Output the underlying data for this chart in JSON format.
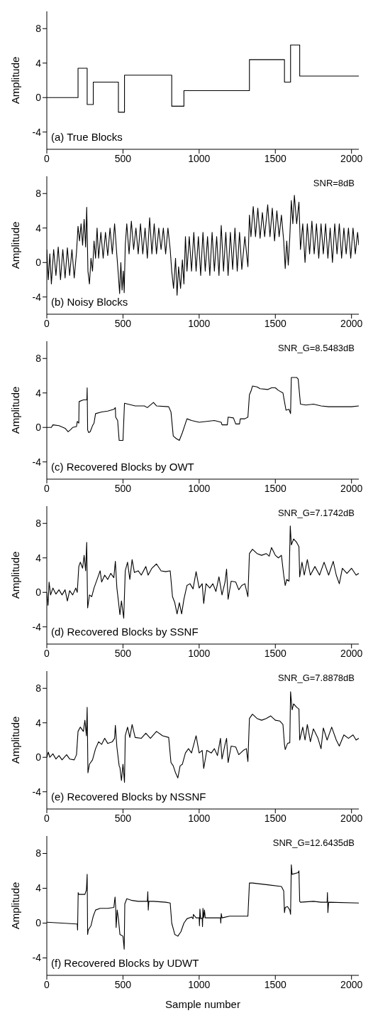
{
  "chart_data": [
    {
      "type": "step",
      "title": "(a) True Blocks",
      "ylabel": "Amplitude",
      "xlim": [
        0,
        2048
      ],
      "ylim": [
        -6,
        10
      ],
      "xticks": [
        0,
        500,
        1000,
        1500,
        2000
      ],
      "yticks": [
        -4,
        0,
        4,
        8
      ],
      "grid": false,
      "legend": false,
      "marker": "none",
      "line_style": "solid",
      "series": [
        {
          "color": "#000000",
          "x": [
            0,
            205,
            265,
            305,
            470,
            510,
            820,
            900,
            1330,
            1560,
            1600,
            1660,
            2048
          ],
          "values": [
            0,
            3.4,
            -0.8,
            1.8,
            -1.7,
            2.6,
            -1,
            0.8,
            4.4,
            1.8,
            6.1,
            2.5,
            2.5
          ]
        }
      ]
    },
    {
      "type": "line",
      "title": "(b) Noisy Blocks",
      "ylabel": "Amplitude",
      "annotations": [
        "SNR=8dB"
      ],
      "xlim": [
        0,
        2048
      ],
      "ylim": [
        -6,
        10
      ],
      "xticks": [
        0,
        500,
        1000,
        1500,
        2000
      ],
      "yticks": [
        -4,
        0,
        4,
        8
      ],
      "grid": false,
      "legend": false,
      "marker": "none",
      "line_style": "solid",
      "series": [
        {
          "color": "#000000",
          "x": [
            0,
            10,
            20,
            30,
            45,
            60,
            75,
            90,
            105,
            120,
            135,
            150,
            165,
            180,
            195,
            205,
            215,
            225,
            235,
            245,
            255,
            262,
            270,
            280,
            290,
            300,
            310,
            320,
            330,
            340,
            355,
            370,
            385,
            400,
            415,
            430,
            445,
            460,
            470,
            478,
            486,
            494,
            502,
            508,
            515,
            525,
            540,
            555,
            570,
            585,
            600,
            615,
            630,
            645,
            660,
            675,
            690,
            705,
            720,
            735,
            750,
            765,
            780,
            795,
            810,
            820,
            832,
            845,
            855,
            865,
            878,
            890,
            900,
            910,
            920,
            935,
            950,
            965,
            980,
            995,
            1010,
            1025,
            1040,
            1055,
            1070,
            1085,
            1100,
            1115,
            1130,
            1145,
            1160,
            1175,
            1190,
            1205,
            1220,
            1235,
            1250,
            1265,
            1280,
            1300,
            1320,
            1330,
            1340,
            1355,
            1370,
            1385,
            1400,
            1415,
            1430,
            1450,
            1465,
            1480,
            1495,
            1510,
            1525,
            1540,
            1555,
            1565,
            1575,
            1585,
            1595,
            1605,
            1615,
            1625,
            1640,
            1655,
            1665,
            1680,
            1695,
            1710,
            1725,
            1740,
            1755,
            1770,
            1785,
            1800,
            1815,
            1830,
            1845,
            1860,
            1875,
            1890,
            1905,
            1920,
            1935,
            1950,
            1965,
            1980,
            1995,
            2010,
            2025,
            2040,
            2048
          ],
          "values": [
            1.5,
            -2,
            1,
            -2.5,
            1.5,
            -1.5,
            1.8,
            -2,
            1.5,
            -1.8,
            1.7,
            -1.5,
            1.5,
            -1.8,
            1.2,
            4.2,
            2.5,
            4.5,
            2,
            5,
            1.8,
            6.4,
            -1,
            -2.5,
            0.5,
            -1,
            2.5,
            0.5,
            4,
            0.5,
            3.5,
            0.5,
            3.5,
            0.8,
            4,
            1,
            4.5,
            0.8,
            -1.5,
            -3.6,
            0,
            -3.2,
            -1,
            -3.5,
            2,
            4.5,
            1,
            4.8,
            1.5,
            4,
            1,
            4.5,
            1,
            4,
            0.5,
            5.2,
            1,
            4.5,
            1,
            4,
            1.5,
            4,
            1,
            4,
            1.5,
            -1,
            -3,
            0.5,
            -3.8,
            -0.5,
            -3,
            0.3,
            -2.5,
            3,
            -1,
            3,
            -1,
            3.5,
            -1,
            3,
            -1.5,
            3.5,
            -1,
            3,
            -1.5,
            3.5,
            -1,
            3,
            -1.5,
            4.3,
            -1,
            3.5,
            -1.5,
            3.5,
            -0.8,
            4,
            -1,
            3.5,
            -0.8,
            3,
            -0.5,
            5.5,
            3,
            6.5,
            3,
            6.3,
            2.8,
            5.8,
            3,
            6.7,
            3,
            6.3,
            2.5,
            6,
            3,
            5.5,
            2.5,
            -0.7,
            2.5,
            -0.3,
            3,
            7.2,
            4.5,
            7.8,
            4.5,
            7,
            1.5,
            4.5,
            0,
            4.5,
            1,
            4.8,
            1,
            4.5,
            0.5,
            4.5,
            1,
            4.5,
            0.5,
            4,
            0,
            4.5,
            1,
            4.5,
            0.5,
            4,
            1,
            4,
            0.5,
            4,
            1,
            3.5,
            2
          ]
        }
      ]
    },
    {
      "type": "line",
      "title": "(c) Recovered Blocks by OWT",
      "ylabel": "Amplitude",
      "annotations": [
        "SNR_G=8.5483dB"
      ],
      "xlim": [
        0,
        2048
      ],
      "ylim": [
        -6,
        10
      ],
      "xticks": [
        0,
        500,
        1000,
        1500,
        2000
      ],
      "yticks": [
        -4,
        0,
        4,
        8
      ],
      "grid": false,
      "legend": false,
      "marker": "none",
      "line_style": "solid",
      "series": [
        {
          "color": "#000000",
          "x": [
            0,
            30,
            40,
            80,
            120,
            140,
            160,
            170,
            195,
            200,
            210,
            212,
            240,
            263,
            265,
            268,
            275,
            285,
            300,
            310,
            320,
            360,
            400,
            440,
            450,
            452,
            465,
            475,
            500,
            510,
            580,
            640,
            660,
            700,
            720,
            800,
            815,
            830,
            850,
            870,
            890,
            905,
            920,
            950,
            1000,
            1050,
            1100,
            1145,
            1150,
            1185,
            1190,
            1225,
            1240,
            1265,
            1270,
            1300,
            1320,
            1330,
            1340,
            1350,
            1380,
            1400,
            1450,
            1475,
            1500,
            1520,
            1550,
            1560,
            1570,
            1590,
            1600,
            1605,
            1640,
            1650,
            1665,
            1700,
            1750,
            1800,
            1850,
            1900,
            1950,
            2000,
            2048
          ],
          "values": [
            0,
            0,
            0.3,
            0.2,
            -0.1,
            -0.5,
            -0.2,
            0,
            0.1,
            0.7,
            0.5,
            3,
            3.2,
            3.2,
            4.6,
            -0.3,
            -0.6,
            -0.5,
            0.2,
            0.5,
            1.6,
            1.8,
            1.9,
            2.1,
            2.3,
            1.2,
            0.8,
            -1.5,
            -1.5,
            2.8,
            2.5,
            2.5,
            2.3,
            2.9,
            2.5,
            2.4,
            1.8,
            -1,
            -1.3,
            -1.5,
            -0.6,
            0.2,
            1,
            0.8,
            0.6,
            0.7,
            0.8,
            0.6,
            0.3,
            0.3,
            1.2,
            1.1,
            0.4,
            0.4,
            1,
            1,
            1.2,
            3.8,
            4.2,
            4.8,
            4.7,
            4.5,
            4.4,
            4.6,
            4.6,
            4.3,
            4,
            3,
            2,
            2.1,
            1.6,
            5.8,
            5.8,
            5.6,
            2.7,
            2.6,
            2.7,
            2.5,
            2.4,
            2.4,
            2.4,
            2.4,
            2.5
          ]
        }
      ]
    },
    {
      "type": "line",
      "title": "(d) Recovered Blocks by SSNF",
      "ylabel": "Amplitude",
      "annotations": [
        "SNR_G=7.1742dB"
      ],
      "xlim": [
        0,
        2048
      ],
      "ylim": [
        -6,
        10
      ],
      "xticks": [
        0,
        500,
        1000,
        1500,
        2000
      ],
      "yticks": [
        -4,
        0,
        4,
        8
      ],
      "grid": false,
      "legend": false,
      "marker": "none",
      "line_style": "solid",
      "series": [
        {
          "color": "#000000",
          "x": [
            0,
            8,
            15,
            25,
            40,
            60,
            80,
            100,
            120,
            135,
            150,
            170,
            190,
            200,
            210,
            220,
            235,
            245,
            255,
            262,
            268,
            280,
            295,
            310,
            330,
            350,
            360,
            380,
            400,
            420,
            440,
            450,
            460,
            470,
            480,
            490,
            505,
            515,
            530,
            545,
            560,
            575,
            600,
            620,
            650,
            665,
            690,
            720,
            750,
            780,
            810,
            825,
            840,
            855,
            870,
            885,
            900,
            920,
            940,
            960,
            980,
            1000,
            1020,
            1030,
            1045,
            1070,
            1090,
            1110,
            1130,
            1150,
            1170,
            1180,
            1190,
            1210,
            1240,
            1260,
            1280,
            1300,
            1320,
            1330,
            1350,
            1380,
            1410,
            1440,
            1460,
            1475,
            1500,
            1520,
            1540,
            1555,
            1565,
            1575,
            1590,
            1598,
            1605,
            1620,
            1640,
            1655,
            1660,
            1675,
            1690,
            1710,
            1730,
            1760,
            1790,
            1820,
            1850,
            1880,
            1900,
            1920,
            1940,
            1970,
            2000,
            2030,
            2048
          ],
          "values": [
            0,
            -1.5,
            1.2,
            -0.3,
            0.5,
            -0.2,
            0.3,
            -0.3,
            0.3,
            -1,
            0.2,
            -0.3,
            0.5,
            0,
            3,
            3.5,
            2.8,
            4.3,
            2.5,
            5.8,
            -1.8,
            -0.3,
            -0.5,
            0.5,
            1.5,
            2.5,
            1.2,
            2,
            1.5,
            2.2,
            1.7,
            3.6,
            0.5,
            -1,
            -2.6,
            -1,
            -3,
            2.5,
            3.5,
            1.5,
            3.8,
            2.3,
            2.5,
            2,
            3,
            2,
            2.8,
            3.3,
            2.5,
            2.4,
            2.5,
            -0.5,
            -1.2,
            -2.5,
            -1.2,
            -2.5,
            -0.8,
            0.8,
            1,
            0.4,
            2.4,
            0.5,
            1,
            -1.3,
            1,
            0.5,
            1,
            0.1,
            1.8,
            -0.3,
            1.2,
            2.7,
            -0.8,
            1.3,
            1.2,
            0.3,
            0.8,
            1,
            -0.5,
            4.5,
            5,
            4.5,
            4.3,
            4.5,
            4.2,
            5.2,
            4.3,
            4,
            4.3,
            2,
            0.8,
            1.5,
            1.3,
            7.7,
            5.5,
            6.2,
            5.8,
            5.3,
            1.8,
            3.5,
            2,
            3.8,
            2,
            3,
            2,
            3.5,
            2,
            3.6,
            2,
            1,
            2.8,
            2.2,
            2.8,
            2,
            2.2
          ]
        }
      ]
    },
    {
      "type": "line",
      "title": "(e) Recovered Blocks by NSSNF",
      "ylabel": "Amplitude",
      "annotations": [
        "SNR_G=7.8878dB"
      ],
      "xlim": [
        0,
        2048
      ],
      "ylim": [
        -6,
        10
      ],
      "xticks": [
        0,
        500,
        1000,
        1500,
        2000
      ],
      "yticks": [
        -4,
        0,
        4,
        8
      ],
      "grid": false,
      "legend": false,
      "marker": "none",
      "line_style": "solid",
      "series": [
        {
          "color": "#000000",
          "x": [
            0,
            10,
            20,
            40,
            60,
            80,
            100,
            130,
            150,
            180,
            195,
            205,
            220,
            240,
            250,
            260,
            265,
            270,
            280,
            300,
            320,
            340,
            360,
            380,
            400,
            430,
            445,
            450,
            460,
            475,
            480,
            490,
            500,
            510,
            515,
            530,
            545,
            560,
            580,
            620,
            650,
            680,
            720,
            760,
            800,
            815,
            830,
            845,
            860,
            875,
            890,
            910,
            930,
            950,
            980,
            1000,
            1020,
            1030,
            1050,
            1080,
            1100,
            1120,
            1140,
            1150,
            1170,
            1180,
            1190,
            1210,
            1240,
            1260,
            1290,
            1310,
            1320,
            1330,
            1350,
            1380,
            1410,
            1440,
            1470,
            1500,
            1530,
            1550,
            1560,
            1565,
            1580,
            1595,
            1600,
            1610,
            1620,
            1640,
            1655,
            1660,
            1680,
            1695,
            1710,
            1730,
            1750,
            1780,
            1800,
            1815,
            1840,
            1870,
            1900,
            1920,
            1950,
            1980,
            2010,
            2030,
            2048
          ],
          "values": [
            0,
            0.6,
            0,
            0.4,
            -0.2,
            0.2,
            -0.3,
            0.3,
            -0.2,
            -0.3,
            0.3,
            3,
            3.5,
            3,
            4.3,
            2.5,
            5.8,
            -1.8,
            -0.8,
            -0.3,
            1,
            1.8,
            1.5,
            2.2,
            1.6,
            1.8,
            2.2,
            3.7,
            1.2,
            -1,
            -1.2,
            -2.7,
            -0.8,
            -2.9,
            2.5,
            3.5,
            2.3,
            3.8,
            2.3,
            2.2,
            2.8,
            2.2,
            3,
            2.5,
            2.3,
            -0.6,
            -1,
            -1.8,
            -2.4,
            -1,
            -0.8,
            0.5,
            1,
            0.5,
            2.5,
            0.5,
            0.8,
            -1.3,
            0.8,
            0.5,
            1,
            0.2,
            2.2,
            -0.2,
            1.5,
            2.2,
            -0.6,
            1.3,
            1.2,
            0.3,
            0.8,
            1,
            -0.5,
            4.5,
            5,
            4.5,
            4.3,
            4.5,
            4.8,
            4.3,
            4.2,
            3.8,
            1.5,
            0.9,
            1.6,
            1.7,
            7.6,
            5.5,
            6.2,
            5.8,
            5.6,
            2,
            3.5,
            2,
            3.8,
            1.8,
            3.3,
            2.2,
            1,
            3.4,
            2,
            3.5,
            2,
            1.3,
            2.6,
            2.2,
            2.6,
            2,
            2.2
          ]
        }
      ]
    },
    {
      "type": "line",
      "title": "(f) Recovered Blocks by UDWT",
      "ylabel": "Amplitude",
      "xlabel": "Sample number",
      "annotations": [
        "SNR_G=12.6435dB"
      ],
      "xlim": [
        0,
        2048
      ],
      "ylim": [
        -6,
        10
      ],
      "xticks": [
        0,
        500,
        1000,
        1500,
        2000
      ],
      "yticks": [
        -4,
        0,
        4,
        8
      ],
      "grid": false,
      "legend": false,
      "marker": "none",
      "line_style": "solid",
      "series": [
        {
          "color": "#000000",
          "x": [
            0,
            100,
            195,
            200,
            202,
            206,
            210,
            250,
            260,
            265,
            268,
            272,
            290,
            305,
            320,
            350,
            400,
            440,
            448,
            452,
            455,
            462,
            470,
            480,
            500,
            508,
            512,
            525,
            560,
            600,
            660,
            663,
            666,
            670,
            700,
            780,
            810,
            820,
            840,
            860,
            880,
            900,
            920,
            950,
            960,
            962,
            980,
            1000,
            1002,
            1005,
            1010,
            1020,
            1022,
            1025,
            1030,
            1035,
            1040,
            1100,
            1140,
            1142,
            1145,
            1150,
            1200,
            1300,
            1320,
            1330,
            1350,
            1450,
            1540,
            1555,
            1560,
            1565,
            1580,
            1595,
            1600,
            1605,
            1610,
            1650,
            1655,
            1660,
            1665,
            1750,
            1800,
            1840,
            1842,
            1845,
            1850,
            2048
          ],
          "values": [
            0.1,
            0,
            -0.1,
            -0.1,
            -0.8,
            3.5,
            3.3,
            3.3,
            3.8,
            5.6,
            -1.3,
            -0.8,
            -0.3,
            0.8,
            1.5,
            1.7,
            1.7,
            1.8,
            3,
            1.8,
            -0.5,
            1.5,
            0.5,
            -1.3,
            -1.5,
            -3,
            2.2,
            2.8,
            2.6,
            2.5,
            2.5,
            3.6,
            1.5,
            2.5,
            2.5,
            2.4,
            2.3,
            0,
            -1.3,
            -1.5,
            -1,
            0,
            0.5,
            0.7,
            0.5,
            1,
            0.6,
            0.6,
            -0.3,
            1.6,
            0.5,
            0.6,
            -0.4,
            1.7,
            0.6,
            1.5,
            0.6,
            0.6,
            0.6,
            0,
            1.1,
            0.6,
            0.8,
            0.8,
            0.8,
            4.6,
            4.6,
            4.4,
            4.2,
            3.7,
            1.2,
            1.8,
            1.9,
            1.5,
            1,
            6.7,
            5.6,
            5.8,
            6,
            2.5,
            2.4,
            2.5,
            2.4,
            2.4,
            3.5,
            1.2,
            2.4,
            2.3
          ]
        }
      ]
    }
  ]
}
